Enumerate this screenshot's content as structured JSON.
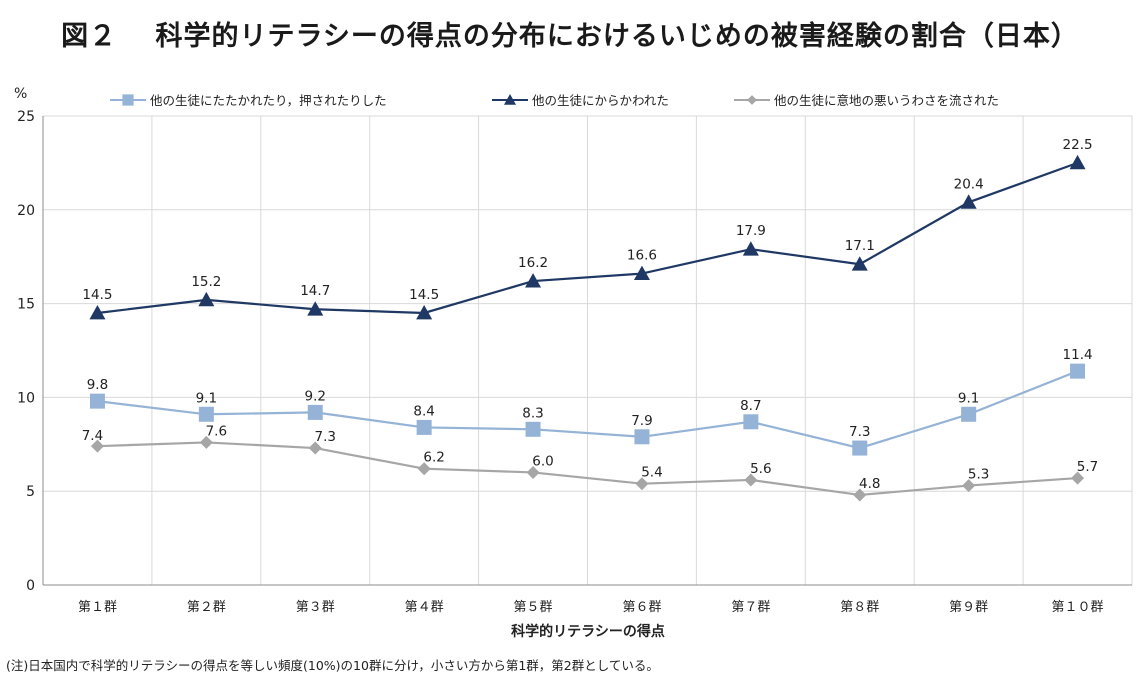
{
  "chart_data": {
    "type": "line",
    "title": "図２　 科学的リテラシーの得点の分布におけるいじめの被害経験の割合（日本）",
    "ylabel": "%",
    "xlabel": "科学的リテラシーの得点",
    "ylim": [
      0,
      25
    ],
    "yticks": [
      0,
      5,
      10,
      15,
      20,
      25
    ],
    "grid": true,
    "legend": "top",
    "categories": [
      "第１群",
      "第２群",
      "第３群",
      "第４群",
      "第５群",
      "第６群",
      "第７群",
      "第８群",
      "第９群",
      "第１０群"
    ],
    "series": [
      {
        "name": "他の生徒にたたかれたり，押されたりした",
        "marker": "square",
        "color": "#95b3d7",
        "labels": [
          "9.8",
          "9.1",
          "9.2",
          "8.4",
          "8.3",
          "7.9",
          "8.7",
          "7.3",
          "9.1",
          "11.4"
        ],
        "values": [
          9.8,
          9.1,
          9.2,
          8.4,
          8.3,
          7.9,
          8.7,
          7.3,
          9.1,
          11.4
        ]
      },
      {
        "name": "他の生徒にからかわれた",
        "marker": "triangle",
        "color": "#1f3864",
        "labels": [
          "14.5",
          "15.2",
          "14.7",
          "14.5",
          "16.2",
          "16.6",
          "17.9",
          "17.1",
          "20.4",
          "22.5"
        ],
        "values": [
          14.5,
          15.2,
          14.7,
          14.5,
          16.2,
          16.6,
          17.9,
          17.1,
          20.4,
          22.5
        ]
      },
      {
        "name": "他の生徒に意地の悪いうわさを流された",
        "marker": "diamond",
        "color": "#a6a6a6",
        "labels": [
          "7.4",
          "7.6",
          "7.3",
          "6.2",
          "6.0",
          "5.4",
          "5.6",
          "4.8",
          "5.3",
          "5.7"
        ],
        "values": [
          7.4,
          7.6,
          7.3,
          6.2,
          6.0,
          5.4,
          5.6,
          4.8,
          5.3,
          5.7
        ]
      }
    ]
  },
  "note": "(注)日本国内で科学的リテラシーの得点を等しい頻度(10%)の10群に分け，小さい方から第1群，第2群としている。"
}
